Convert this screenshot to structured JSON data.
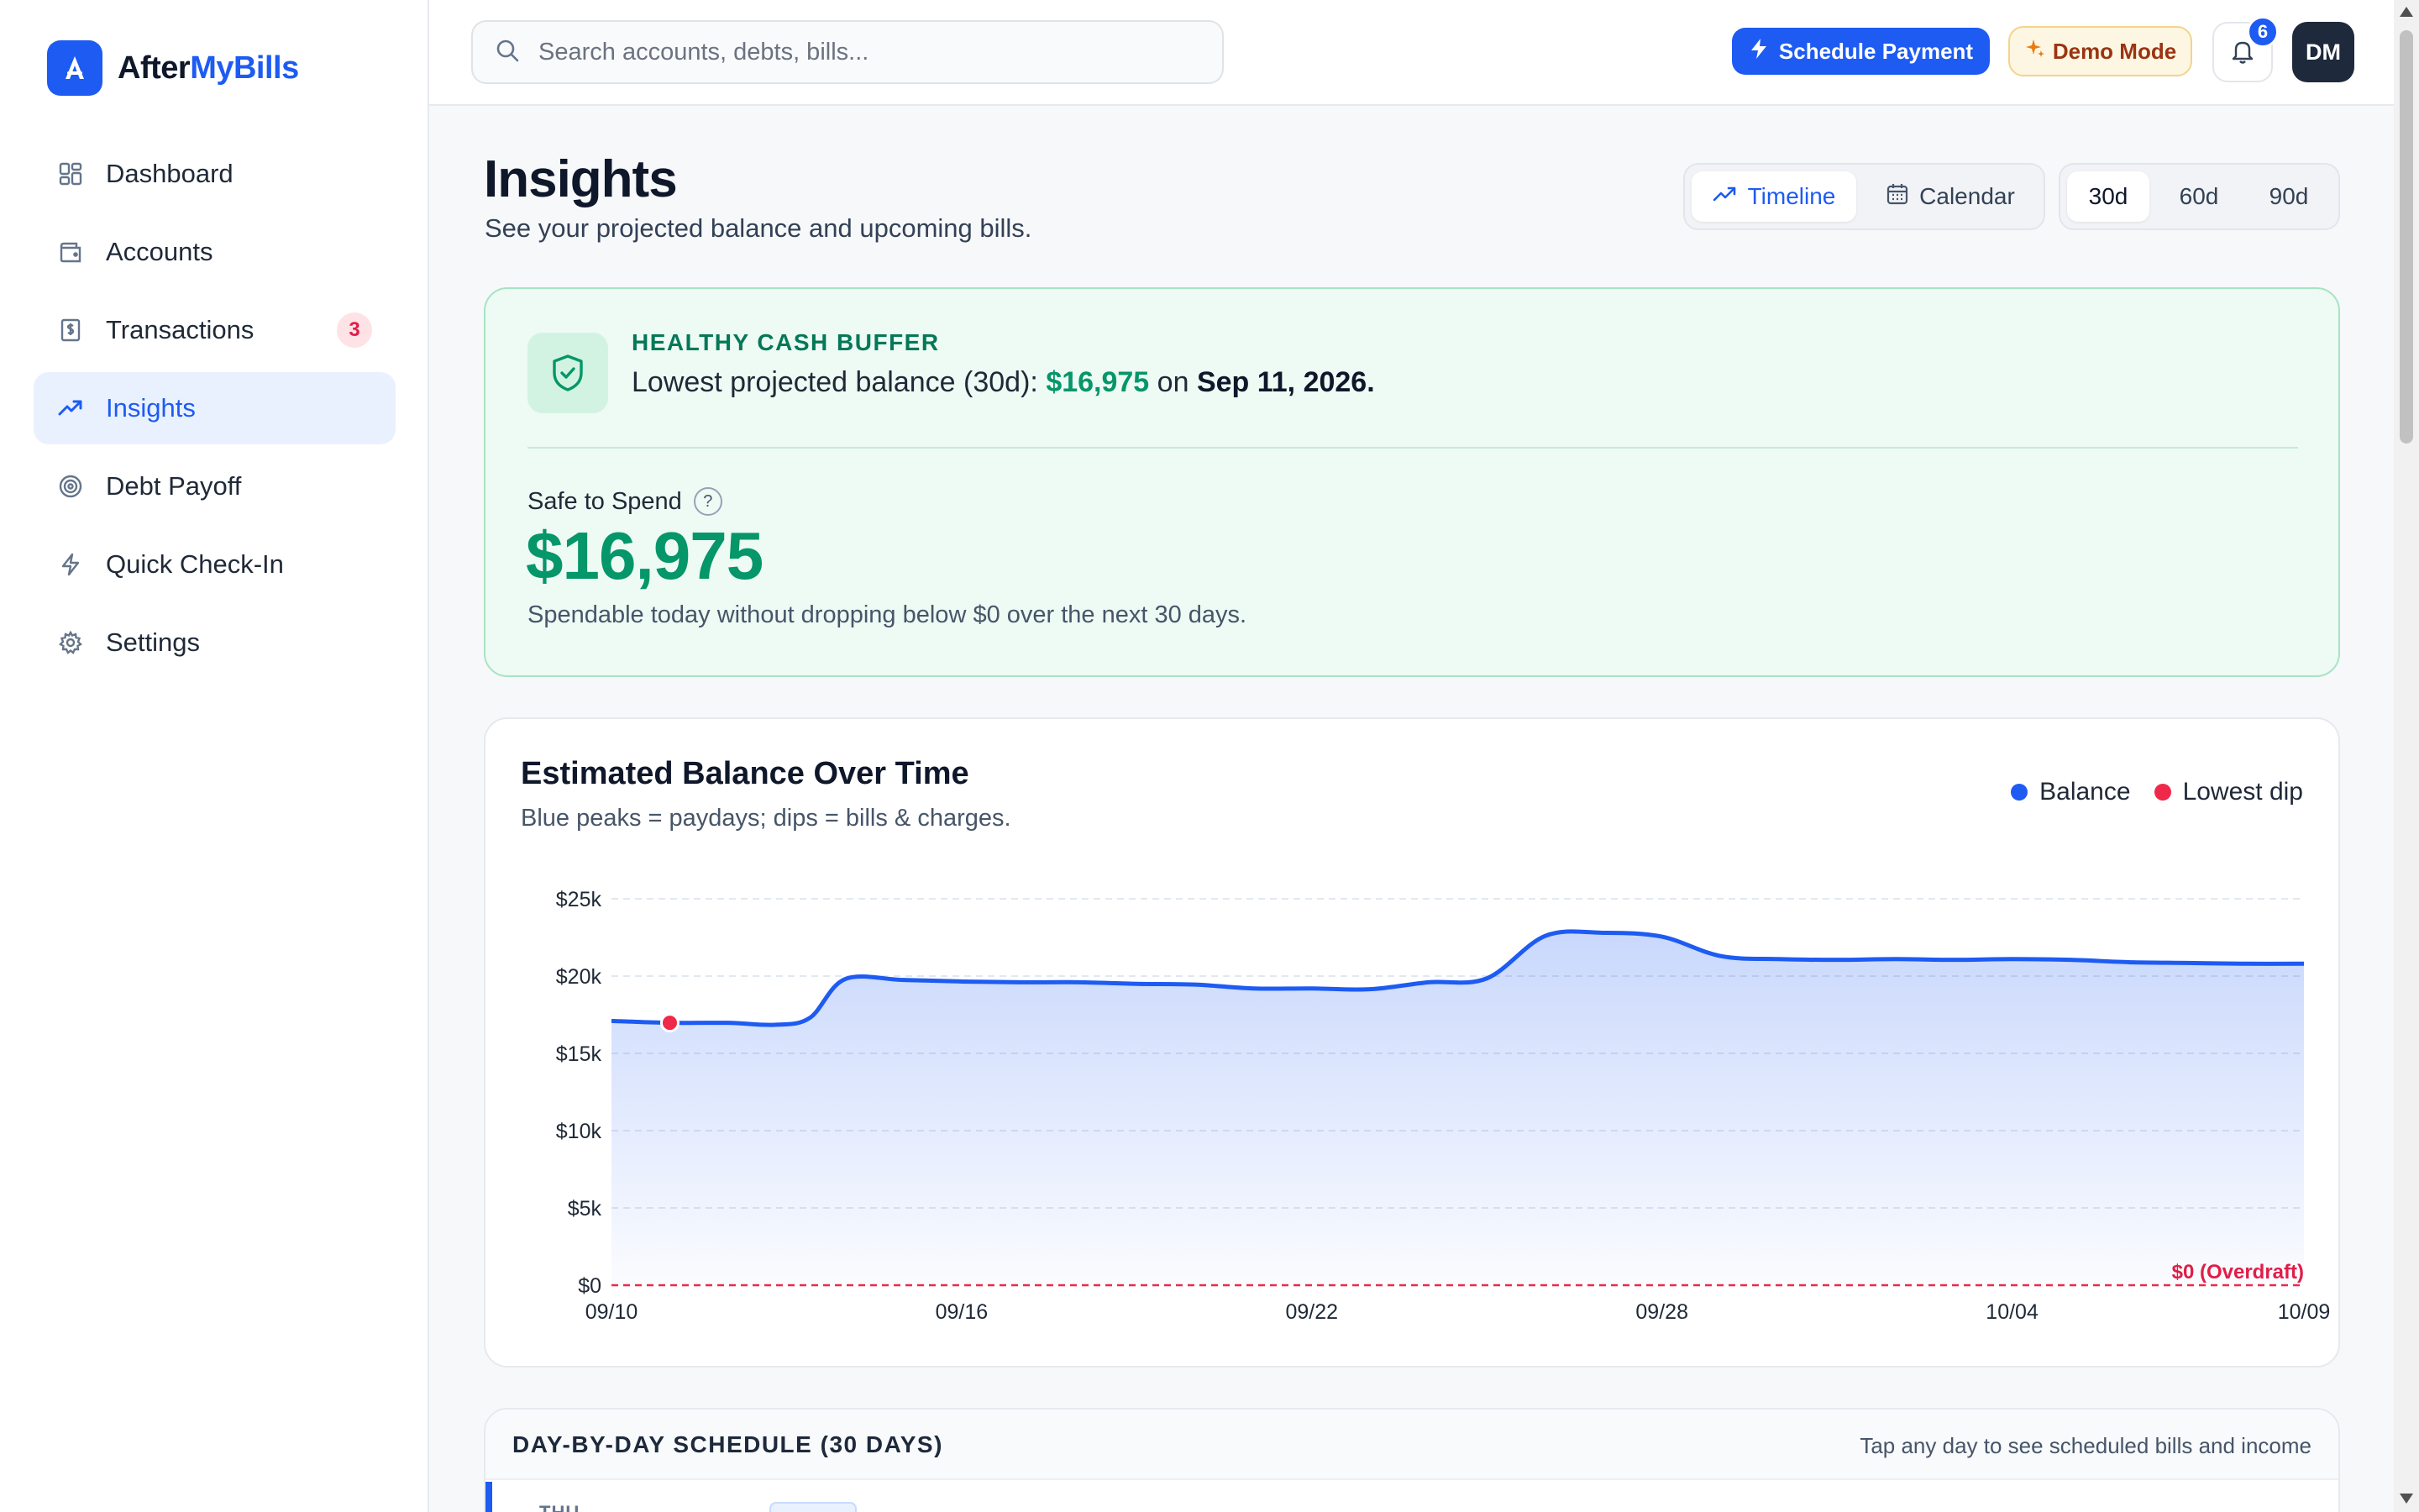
{
  "brand": {
    "name_prefix": "After",
    "name_accent": "MyBills"
  },
  "sidebar": {
    "items": [
      {
        "label": "Dashboard",
        "icon": "grid-icon",
        "active": false
      },
      {
        "label": "Accounts",
        "icon": "wallet-icon",
        "active": false
      },
      {
        "label": "Transactions",
        "icon": "receipt-icon",
        "active": false,
        "badge": "3"
      },
      {
        "label": "Insights",
        "icon": "trending-up-icon",
        "active": true
      },
      {
        "label": "Debt Payoff",
        "icon": "target-icon",
        "active": false
      },
      {
        "label": "Quick Check-In",
        "icon": "bolt-icon",
        "active": false
      },
      {
        "label": "Settings",
        "icon": "gear-icon",
        "active": false
      }
    ]
  },
  "topbar": {
    "search_placeholder": "Search accounts, debts, bills...",
    "schedule_label": "Schedule Payment",
    "demo_label": "Demo Mode",
    "notifications_count": "6",
    "avatar_initials": "DM"
  },
  "header": {
    "title": "Insights",
    "subtitle": "See your projected balance and upcoming bills.",
    "view_tabs": [
      {
        "label": "Timeline",
        "icon": "trending-up-icon",
        "active": true
      },
      {
        "label": "Calendar",
        "icon": "calendar-icon",
        "active": false
      }
    ],
    "ranges": [
      {
        "label": "30d",
        "active": true
      },
      {
        "label": "60d",
        "active": false
      },
      {
        "label": "90d",
        "active": false
      }
    ]
  },
  "health": {
    "label": "HEALTHY CASH BUFFER",
    "line_prefix": "Lowest projected balance (30d): ",
    "lowest_amount": "$16,975",
    "line_mid": " on ",
    "lowest_date": "Sep 11, 2026.",
    "safe_label": "Safe to Spend",
    "help_glyph": "?",
    "safe_value": "$16,975",
    "safe_desc": "Spendable today without dropping below $0 over the next 30 days."
  },
  "chart": {
    "title": "Estimated Balance Over Time",
    "subtitle": "Blue peaks = paydays; dips = bills & charges.",
    "legend": [
      {
        "label": "Balance",
        "color": "#1d5bf2"
      },
      {
        "label": "Lowest dip",
        "color": "#f0284a"
      }
    ]
  },
  "chart_data": {
    "type": "area",
    "title": "Estimated Balance Over Time",
    "x_tick_labels": [
      "09/10",
      "09/16",
      "09/22",
      "09/28",
      "10/04",
      "10/09"
    ],
    "y_tick_labels": [
      "$0",
      "$5k",
      "$10k",
      "$15k",
      "$20k",
      "$25k"
    ],
    "ylim": [
      0,
      25000
    ],
    "x_range_days": [
      0,
      29
    ],
    "series": [
      {
        "name": "Balance",
        "points": [
          [
            0,
            17100
          ],
          [
            1,
            16975
          ],
          [
            2,
            16975
          ],
          [
            2.8,
            16850
          ],
          [
            3.4,
            17300
          ],
          [
            4,
            19800
          ],
          [
            5,
            19750
          ],
          [
            6,
            19650
          ],
          [
            7,
            19600
          ],
          [
            8,
            19600
          ],
          [
            9,
            19500
          ],
          [
            10,
            19450
          ],
          [
            11,
            19200
          ],
          [
            12,
            19200
          ],
          [
            13,
            19150
          ],
          [
            14,
            19600
          ],
          [
            15,
            19850
          ],
          [
            16,
            22600
          ],
          [
            17,
            22800
          ],
          [
            18,
            22550
          ],
          [
            19,
            21300
          ],
          [
            20,
            21100
          ],
          [
            21,
            21050
          ],
          [
            22,
            21100
          ],
          [
            23,
            21050
          ],
          [
            24,
            21100
          ],
          [
            25,
            21050
          ],
          [
            26,
            20900
          ],
          [
            27,
            20850
          ],
          [
            28,
            20800
          ],
          [
            29,
            20800
          ]
        ]
      }
    ],
    "lowest_dip": {
      "x": 1,
      "y": 16975
    },
    "overdraft_line": {
      "y": 0,
      "label": "$0 (Overdraft)"
    },
    "grid": true,
    "legend_position": "top-right"
  },
  "schedule": {
    "title": "DAY-BY-DAY SCHEDULE (30 DAYS)",
    "hint": "Tap any day to see scheduled bills and income",
    "first_day": "THU"
  },
  "colors": {
    "accent": "#1d5bf2",
    "success": "#059669",
    "danger": "#f0284a"
  }
}
